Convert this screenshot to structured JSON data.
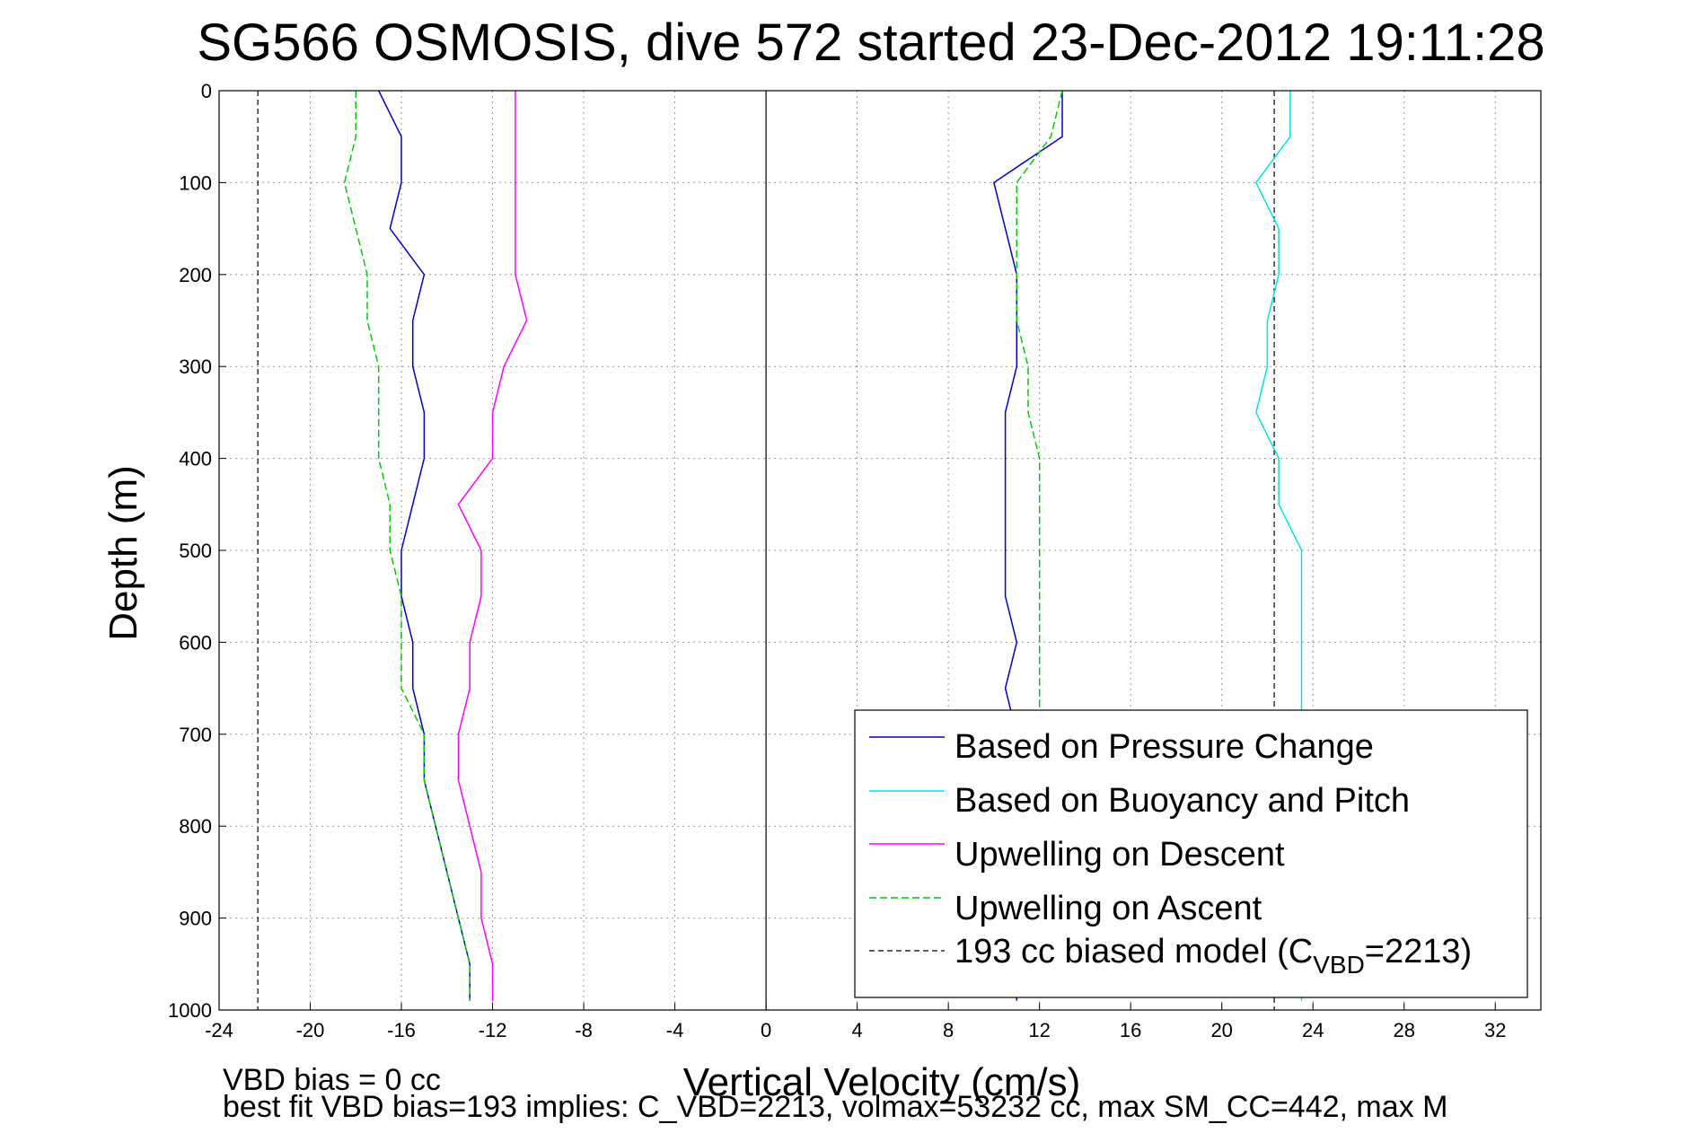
{
  "chart_data": {
    "type": "line",
    "title": "SG566 OSMOSIS, dive 572 started 23-Dec-2012 19:11:28",
    "xlabel": "Vertical Velocity (cm/s)",
    "ylabel": "Depth (m)",
    "xlim": [
      -24,
      34
    ],
    "ylim": [
      0,
      1000
    ],
    "y_reversed": true,
    "grid": true,
    "xticks": [
      -24,
      -20,
      -16,
      -12,
      -8,
      -4,
      0,
      4,
      8,
      12,
      16,
      20,
      24,
      28,
      32
    ],
    "yticks": [
      0,
      100,
      200,
      300,
      400,
      500,
      600,
      700,
      800,
      900,
      1000
    ],
    "legend_position": "bottom-right",
    "legend": {
      "entry1": "Based on Pressure Change",
      "entry2": "Based on Buoyancy and Pitch",
      "entry3": "Upwelling on Descent",
      "entry4": "Upwelling on Ascent",
      "entry5_prefix": "193 cc biased model (C",
      "entry5_sub": "VBD",
      "entry5_suffix": "=2213)"
    },
    "colors": {
      "pressure": "#0000cc",
      "buoyancy": "#00e5e5",
      "descent": "#ff00ff",
      "ascent": "#00cc00",
      "model": "#000000"
    },
    "series": [
      {
        "key": "pressure_desc",
        "color_key": "pressure",
        "dashed": false,
        "depth": [
          0,
          50,
          100,
          150,
          200,
          250,
          300,
          350,
          400,
          450,
          500,
          550,
          600,
          650,
          700,
          750,
          800,
          850,
          900,
          950,
          990
        ],
        "velocity": [
          -17,
          -16,
          -16,
          -16.5,
          -15,
          -15.5,
          -15.5,
          -15,
          -15,
          -15.5,
          -16,
          -16,
          -15.5,
          -15.5,
          -15,
          -15,
          -14.5,
          -14,
          -13.5,
          -13,
          -13
        ]
      },
      {
        "key": "pressure_asc",
        "color_key": "pressure",
        "dashed": false,
        "depth": [
          0,
          50,
          100,
          150,
          200,
          250,
          300,
          350,
          400,
          450,
          500,
          550,
          600,
          650,
          700,
          750,
          800,
          850,
          900,
          950,
          990
        ],
        "velocity": [
          13,
          13,
          10,
          10.5,
          11,
          11,
          11,
          10.5,
          10.5,
          10.5,
          10.5,
          10.5,
          11,
          10.5,
          11,
          11,
          11,
          11,
          11,
          11,
          11
        ]
      },
      {
        "key": "buoyancy_desc",
        "color_key": "buoyancy",
        "dashed": false,
        "depth": [
          0,
          50,
          100,
          150,
          200,
          250,
          300,
          350,
          400,
          450,
          500,
          550,
          600,
          650,
          700,
          750,
          800,
          850,
          900,
          950,
          990
        ],
        "velocity": [
          23,
          23,
          21.5,
          22.5,
          22.5,
          22,
          22,
          21.5,
          22.5,
          22.5,
          23.5,
          23.5,
          23.5,
          23.5,
          23.5,
          23.5,
          23.5,
          23.5,
          23.5,
          23.5,
          23.5
        ]
      },
      {
        "key": "descent",
        "color_key": "descent",
        "dashed": false,
        "depth": [
          0,
          50,
          100,
          150,
          200,
          250,
          300,
          350,
          400,
          450,
          500,
          550,
          600,
          650,
          700,
          750,
          800,
          850,
          900,
          950,
          990
        ],
        "velocity": [
          -11,
          -11,
          -11,
          -11,
          -11,
          -10.5,
          -11.5,
          -12,
          -12,
          -13.5,
          -12.5,
          -12.5,
          -13,
          -13,
          -13.5,
          -13.5,
          -13,
          -12.5,
          -12.5,
          -12,
          -12
        ]
      },
      {
        "key": "ascent",
        "color_key": "ascent",
        "dashed": true,
        "depth": [
          0,
          50,
          100,
          150,
          200,
          250,
          300,
          350,
          400,
          450,
          500,
          550,
          600,
          650,
          700,
          750,
          800,
          850,
          900,
          950,
          990
        ],
        "velocity": [
          -18,
          -18,
          -18.5,
          -18,
          -17.5,
          -17.5,
          -17,
          -17,
          -17,
          -16.5,
          -16.5,
          -16,
          -16,
          -16,
          -15,
          -15,
          -14.5,
          -14,
          -13.5,
          -13,
          -13
        ]
      },
      {
        "key": "ascent_up",
        "color_key": "ascent",
        "dashed": true,
        "depth": [
          0,
          50,
          100,
          150,
          200,
          250,
          300,
          350,
          400,
          450,
          500,
          550,
          600,
          650,
          700,
          750,
          800,
          850,
          900,
          950,
          990
        ],
        "velocity": [
          13,
          12.5,
          11,
          11,
          11,
          11,
          11.5,
          11.5,
          12,
          12,
          12,
          12,
          12,
          12,
          12,
          12,
          12,
          12,
          12,
          12,
          12
        ]
      }
    ],
    "model_lines": [
      {
        "velocity": -22.3
      },
      {
        "velocity": 22.3
      }
    ],
    "footer": {
      "line1": "VBD bias = 0 cc",
      "line2": "best fit VBD bias=193 implies: C_VBD=2213, volmax=53232 cc, max SM_CC=442, max M"
    }
  }
}
